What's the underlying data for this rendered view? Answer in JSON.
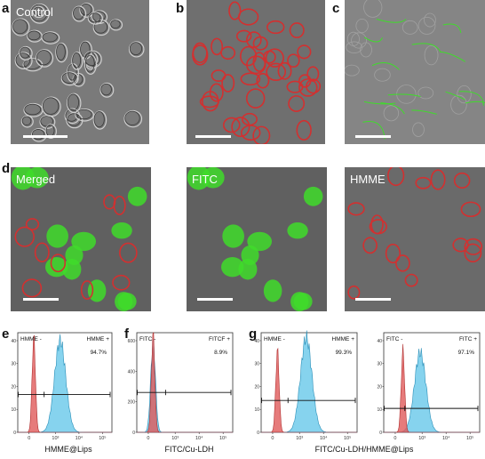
{
  "figure": {
    "letters": [
      "a",
      "b",
      "c",
      "d",
      "e",
      "f",
      "g"
    ],
    "micrographs": {
      "a": {
        "label": "Control"
      },
      "b": {
        "label": ""
      },
      "c": {
        "label": ""
      },
      "d1": {
        "label": "Merged"
      },
      "d2": {
        "label": "FITC"
      },
      "d3": {
        "label": "HMME"
      }
    }
  },
  "chart_data": [
    {
      "type": "area",
      "panel": "e",
      "xlabel": "HMME@Lips",
      "gate_neg": "HMME -",
      "gate_pos": "HMME +",
      "percent": "94.7%",
      "x_scale": "log",
      "x_ticks": [
        "0",
        "10³",
        "10⁴",
        "10⁵"
      ],
      "y_ticks": [
        "0",
        "10",
        "20",
        "30",
        "40"
      ],
      "ylim": [
        0,
        40
      ]
    },
    {
      "type": "area",
      "panel": "f",
      "xlabel": "FITC/Cu-LDH",
      "gate_neg": "FITC -",
      "gate_pos": "FITCF +",
      "percent": "8.9%",
      "x_scale": "log",
      "x_ticks": [
        "0",
        "10³",
        "10⁴",
        "10⁵"
      ],
      "y_ticks": [
        "0",
        "200",
        "400",
        "600"
      ],
      "ylim": [
        0,
        600
      ]
    },
    {
      "type": "area",
      "panel": "g1",
      "xlabel": "",
      "gate_neg": "HMME -",
      "gate_pos": "HMME +",
      "percent": "99.3%",
      "x_scale": "log",
      "x_ticks": [
        "0",
        "10³",
        "10⁴",
        "10⁵"
      ],
      "y_ticks": [
        "0",
        "10",
        "20",
        "30",
        "40"
      ],
      "ylim": [
        0,
        40
      ]
    },
    {
      "type": "area",
      "panel": "g2",
      "xlabel": "",
      "gate_neg": "FITC -",
      "gate_pos": "FITC +",
      "percent": "97.1%",
      "x_scale": "log",
      "x_ticks": [
        "0",
        "10³",
        "10⁴",
        "10⁵"
      ],
      "y_ticks": [
        "0",
        "10",
        "20",
        "30",
        "40"
      ],
      "ylim": [
        0,
        40
      ]
    }
  ],
  "g_shared_xlabel": "FITC/Cu-LDH/HMME@Lips",
  "colors": {
    "control_red": "#e05a5a",
    "sample_blue": "#5ec4e8",
    "fitc_green": "#3fdc2a",
    "hmme_red": "#d23030"
  }
}
